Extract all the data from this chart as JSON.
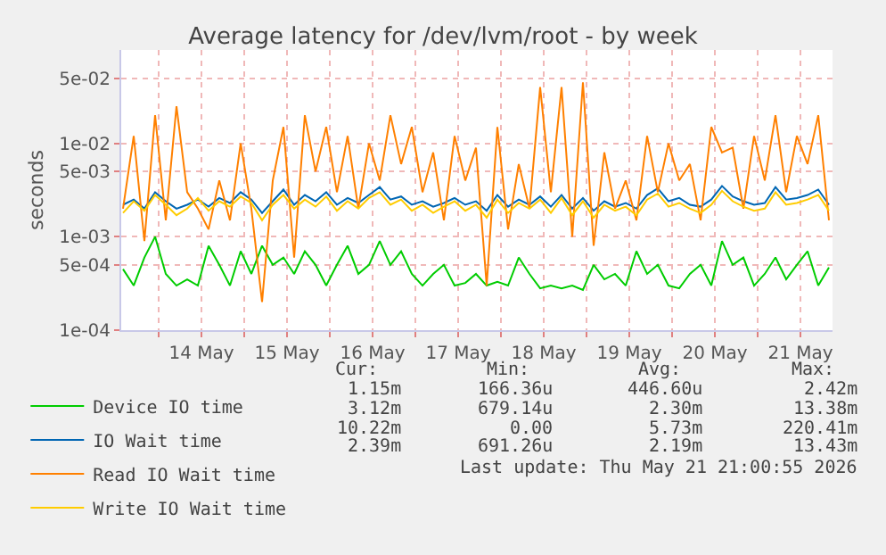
{
  "chart_data": {
    "type": "line",
    "title": "Average latency for /dev/lvm/root - by week",
    "ylabel": "seconds",
    "x": [
      "2026-05-13T14:00",
      "2026-05-13T17:00",
      "2026-05-13T20:00",
      "2026-05-13T23:00",
      "2026-05-14T02:00",
      "2026-05-14T05:00",
      "2026-05-14T08:00",
      "2026-05-14T11:00",
      "2026-05-14T14:00",
      "2026-05-14T17:00",
      "2026-05-14T20:00",
      "2026-05-14T23:00",
      "2026-05-15T02:00",
      "2026-05-15T05:00",
      "2026-05-15T08:00",
      "2026-05-15T11:00",
      "2026-05-15T14:00",
      "2026-05-15T17:00",
      "2026-05-15T20:00",
      "2026-05-15T23:00",
      "2026-05-16T02:00",
      "2026-05-16T05:00",
      "2026-05-16T08:00",
      "2026-05-16T11:00",
      "2026-05-16T14:00",
      "2026-05-16T17:00",
      "2026-05-16T20:00",
      "2026-05-16T23:00",
      "2026-05-17T02:00",
      "2026-05-17T05:00",
      "2026-05-17T08:00",
      "2026-05-17T11:00",
      "2026-05-17T14:00",
      "2026-05-17T17:00",
      "2026-05-17T20:00",
      "2026-05-17T23:00",
      "2026-05-18T02:00",
      "2026-05-18T05:00",
      "2026-05-18T08:00",
      "2026-05-18T11:00",
      "2026-05-18T14:00",
      "2026-05-18T17:00",
      "2026-05-18T20:00",
      "2026-05-18T23:00",
      "2026-05-19T02:00",
      "2026-05-19T05:00",
      "2026-05-19T08:00",
      "2026-05-19T11:00",
      "2026-05-19T14:00",
      "2026-05-19T17:00",
      "2026-05-19T20:00",
      "2026-05-19T23:00",
      "2026-05-20T02:00",
      "2026-05-20T05:00",
      "2026-05-20T08:00",
      "2026-05-20T11:00",
      "2026-05-20T14:00",
      "2026-05-20T17:00",
      "2026-05-20T20:00",
      "2026-05-20T23:00",
      "2026-05-21T02:00",
      "2026-05-21T05:00",
      "2026-05-21T08:00",
      "2026-05-21T11:00",
      "2026-05-21T14:00",
      "2026-05-21T17:00",
      "2026-05-21T20:00"
    ],
    "series": [
      {
        "name": "Device IO time",
        "color": "#00cc00",
        "values": [
          0.00045,
          0.0003,
          0.0006,
          0.001,
          0.0004,
          0.0003,
          0.00035,
          0.0003,
          0.0008,
          0.0005,
          0.0003,
          0.0007,
          0.0004,
          0.0008,
          0.0005,
          0.0006,
          0.0004,
          0.0007,
          0.0005,
          0.0003,
          0.0005,
          0.0008,
          0.0004,
          0.0005,
          0.0009,
          0.0005,
          0.0007,
          0.0004,
          0.0003,
          0.0004,
          0.0005,
          0.0003,
          0.00032,
          0.0004,
          0.0003,
          0.00033,
          0.0003,
          0.0006,
          0.0004,
          0.00028,
          0.0003,
          0.00028,
          0.0003,
          0.00027,
          0.0005,
          0.00035,
          0.0004,
          0.0003,
          0.0007,
          0.0004,
          0.0005,
          0.0003,
          0.00028,
          0.0004,
          0.0005,
          0.0003,
          0.0009,
          0.0005,
          0.0006,
          0.0003,
          0.0004,
          0.0006,
          0.00035,
          0.0005,
          0.0007,
          0.0003,
          0.00047
        ]
      },
      {
        "name": "IO Wait time",
        "color": "#0066b3",
        "values": [
          0.0022,
          0.0025,
          0.002,
          0.003,
          0.0024,
          0.002,
          0.0022,
          0.0025,
          0.0021,
          0.0026,
          0.0023,
          0.003,
          0.0025,
          0.0018,
          0.0024,
          0.0032,
          0.0022,
          0.0028,
          0.0024,
          0.003,
          0.0022,
          0.0026,
          0.0023,
          0.0028,
          0.0034,
          0.0025,
          0.0027,
          0.0022,
          0.0024,
          0.0021,
          0.0023,
          0.0026,
          0.0022,
          0.0024,
          0.0019,
          0.0028,
          0.0021,
          0.0025,
          0.0022,
          0.0027,
          0.0021,
          0.0028,
          0.002,
          0.0026,
          0.0019,
          0.0024,
          0.0021,
          0.0023,
          0.002,
          0.0028,
          0.0033,
          0.0024,
          0.0026,
          0.0022,
          0.0021,
          0.0025,
          0.0035,
          0.0027,
          0.0024,
          0.0022,
          0.0023,
          0.0034,
          0.0025,
          0.0026,
          0.0028,
          0.0032,
          0.0022
        ]
      },
      {
        "name": "Read IO Wait time",
        "color": "#ff8000",
        "values": [
          0.002,
          0.012,
          0.0009,
          0.02,
          0.0015,
          0.025,
          0.003,
          0.002,
          0.0012,
          0.004,
          0.0015,
          0.01,
          0.002,
          0.0002,
          0.004,
          0.015,
          0.0006,
          0.02,
          0.005,
          0.015,
          0.003,
          0.012,
          0.002,
          0.01,
          0.004,
          0.02,
          0.006,
          0.015,
          0.003,
          0.008,
          0.0015,
          0.012,
          0.004,
          0.009,
          0.0003,
          0.015,
          0.0012,
          0.006,
          0.002,
          0.04,
          0.003,
          0.04,
          0.001,
          0.045,
          0.0008,
          0.008,
          0.002,
          0.004,
          0.0015,
          0.012,
          0.003,
          0.01,
          0.004,
          0.006,
          0.0015,
          0.015,
          0.008,
          0.009,
          0.002,
          0.012,
          0.004,
          0.02,
          0.003,
          0.012,
          0.006,
          0.02,
          0.0015
        ]
      },
      {
        "name": "Write IO Wait time",
        "color": "#ffcc00",
        "values": [
          0.0018,
          0.0024,
          0.0019,
          0.0028,
          0.0022,
          0.0017,
          0.002,
          0.0026,
          0.0019,
          0.0024,
          0.0021,
          0.0027,
          0.0023,
          0.0015,
          0.0022,
          0.0028,
          0.002,
          0.0025,
          0.0021,
          0.0027,
          0.0019,
          0.0024,
          0.002,
          0.0026,
          0.003,
          0.0022,
          0.0025,
          0.0019,
          0.0022,
          0.0018,
          0.0021,
          0.0024,
          0.0019,
          0.0022,
          0.0016,
          0.0025,
          0.0018,
          0.0023,
          0.002,
          0.0025,
          0.0018,
          0.0026,
          0.0017,
          0.0024,
          0.0016,
          0.0022,
          0.0019,
          0.0021,
          0.0017,
          0.0025,
          0.0029,
          0.0021,
          0.0023,
          0.002,
          0.0018,
          0.0022,
          0.0031,
          0.0024,
          0.0021,
          0.0019,
          0.002,
          0.003,
          0.0022,
          0.0023,
          0.0025,
          0.0028,
          0.0019
        ]
      }
    ],
    "log": "y",
    "ylim": [
      0.0001,
      0.1
    ],
    "yticks": [
      {
        "value": 0.0001,
        "label": "1e-04"
      },
      {
        "value": 0.0005,
        "label": "5e-04"
      },
      {
        "value": 0.001,
        "label": "1e-03"
      },
      {
        "value": 0.005,
        "label": "5e-03"
      },
      {
        "value": 0.01,
        "label": "1e-02"
      },
      {
        "value": 0.05,
        "label": "5e-02"
      }
    ],
    "xlim": [
      "2026-05-13T13:30",
      "2026-05-21T21:00"
    ],
    "xticks": [
      {
        "value": "2026-05-14T00:00",
        "label": null
      },
      {
        "value": "2026-05-14T12:00",
        "label": "14 May"
      },
      {
        "value": "2026-05-15T00:00",
        "label": null
      },
      {
        "value": "2026-05-15T12:00",
        "label": "15 May"
      },
      {
        "value": "2026-05-16T00:00",
        "label": null
      },
      {
        "value": "2026-05-16T12:00",
        "label": "16 May"
      },
      {
        "value": "2026-05-17T00:00",
        "label": null
      },
      {
        "value": "2026-05-17T12:00",
        "label": "17 May"
      },
      {
        "value": "2026-05-18T00:00",
        "label": null
      },
      {
        "value": "2026-05-18T12:00",
        "label": "18 May"
      },
      {
        "value": "2026-05-19T00:00",
        "label": null
      },
      {
        "value": "2026-05-19T12:00",
        "label": "19 May"
      },
      {
        "value": "2026-05-20T00:00",
        "label": null
      },
      {
        "value": "2026-05-20T12:00",
        "label": "20 May"
      },
      {
        "value": "2026-05-21T00:00",
        "label": null
      },
      {
        "value": "2026-05-21T12:00",
        "label": "21 May"
      }
    ],
    "grid": true,
    "legend": "bottom",
    "marker": "none",
    "line_style": "solid",
    "annotations": [
      "Cur:",
      "Min:",
      "Avg:",
      "Max:",
      "1.15m",
      "166.36u",
      "446.60u",
      "2.42m",
      "3.12m",
      "679.14u",
      "2.30m",
      "13.38m",
      "10.22m",
      "0.00",
      "5.73m",
      "220.41m",
      "2.39m",
      "691.26u",
      "2.19m",
      "13.43m",
      "Last update: Thu May 21 21:00:55 2026"
    ]
  }
}
